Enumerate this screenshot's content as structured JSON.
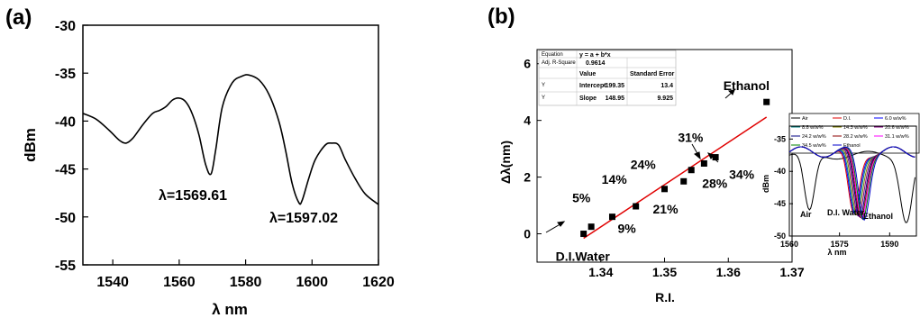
{
  "chart_data": [
    {
      "type": "line",
      "panel_label": "(a)",
      "xlabel": "λ nm",
      "ylabel": "dBm",
      "xlim": [
        1531,
        1620
      ],
      "ylim": [
        -55,
        -30
      ],
      "xticks": [
        1540,
        1560,
        1580,
        1600,
        1620
      ],
      "yticks": [
        -30,
        -35,
        -40,
        -45,
        -50,
        -55
      ],
      "grid": false,
      "series": [
        {
          "x": [
            1531,
            1535,
            1539,
            1542,
            1544,
            1546,
            1549,
            1552,
            1554,
            1556,
            1558,
            1560,
            1562,
            1564,
            1566,
            1568,
            1569.6,
            1571,
            1573,
            1576,
            1579,
            1581,
            1584,
            1587,
            1590,
            1592,
            1594,
            1596,
            1597,
            1599,
            1601,
            1604,
            1606,
            1608,
            1610,
            1613,
            1616,
            1620
          ],
          "y": [
            -39.2,
            -39.8,
            -41.0,
            -42.0,
            -42.3,
            -41.8,
            -40.4,
            -39.2,
            -38.9,
            -38.5,
            -37.8,
            -37.6,
            -38.0,
            -39.3,
            -41.5,
            -44.6,
            -45.5,
            -43.0,
            -38.5,
            -36.0,
            -35.3,
            -35.2,
            -35.7,
            -37.2,
            -40.0,
            -43.0,
            -46.5,
            -48.5,
            -48.3,
            -46.0,
            -44.0,
            -42.5,
            -42.3,
            -42.5,
            -44.0,
            -46.0,
            -47.6,
            -48.7
          ]
        }
      ],
      "annotations": [
        "λ=1569.61",
        "λ=1597.02"
      ]
    },
    {
      "type": "scatter",
      "panel_label": "(b)",
      "xlabel": "R.I.",
      "ylabel": "Δλ(nm)",
      "xlim": [
        1.33,
        1.37
      ],
      "ylim": [
        -1,
        6.5
      ],
      "xticks": [
        1.34,
        1.35,
        1.36,
        1.37
      ],
      "yticks": [
        0,
        2,
        4,
        6
      ],
      "grid": false,
      "points": [
        {
          "x": 1.3373,
          "y": 0.0,
          "label": "D.I.Water"
        },
        {
          "x": 1.3385,
          "y": 0.25,
          "label": "5%"
        },
        {
          "x": 1.3418,
          "y": 0.6,
          "label": "9%"
        },
        {
          "x": 1.3455,
          "y": 0.97,
          "label": "14%"
        },
        {
          "x": 1.35,
          "y": 1.58,
          "label": "21%"
        },
        {
          "x": 1.353,
          "y": 1.85,
          "label": "24%"
        },
        {
          "x": 1.3542,
          "y": 2.25,
          "label": "28%"
        },
        {
          "x": 1.3562,
          "y": 2.48,
          "label": "31%"
        },
        {
          "x": 1.358,
          "y": 2.7,
          "label": "34%"
        },
        {
          "x": 1.366,
          "y": 4.65,
          "label": "Ethanol"
        }
      ],
      "fit": {
        "intercept": -199.35,
        "slope": 148.95,
        "x_range": [
          1.3373,
          1.366
        ],
        "color": "#e00000"
      },
      "fit_table": {
        "equation_label": "Equation",
        "equation": "y = a + b*x",
        "adj_r2_label": "Adj. R-Square",
        "adj_r2": "0.9614",
        "header_value": "Value",
        "header_error": "Standard Error",
        "row_marker": "Y",
        "rows": [
          {
            "name": "Intercept",
            "value": "-199.35",
            "error": "13.4"
          },
          {
            "name": "Slope",
            "value": "148.95",
            "error": "9.925"
          }
        ]
      }
    },
    {
      "type": "line",
      "panel_label": "inset",
      "xlabel": "λ nm",
      "ylabel": "dBm",
      "xlim": [
        1560,
        1598
      ],
      "ylim": [
        -50,
        -33
      ],
      "xticks": [
        1560,
        1575,
        1590
      ],
      "yticks": [
        -35,
        -40,
        -45,
        -50
      ],
      "legend": [
        "Air",
        "D.I.",
        "6.0 w/w%",
        "8.8 w/w%",
        "14.3 w/w%",
        "20.6 w/w%",
        "24.2 w/w%",
        "28.2 w/w%",
        "31.1 w/w%",
        "34.5 w/w%",
        "Ethanol"
      ],
      "legend_colors": [
        "#000000",
        "#e00000",
        "#0000ff",
        "#008080",
        "#808000",
        "#800080",
        "#000080",
        "#8b0000",
        "#ff00ff",
        "#008000",
        "#0000cd"
      ],
      "annotations": [
        "Air",
        "D.I. Water",
        "Ethanol"
      ]
    }
  ]
}
